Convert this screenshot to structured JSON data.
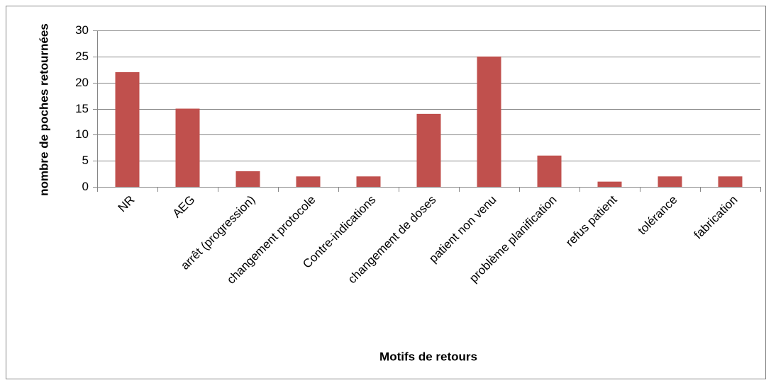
{
  "chart_data": {
    "type": "bar",
    "xlabel": "Motifs de retours",
    "ylabel": "nombre de poches retournées",
    "categories": [
      "NR",
      "AEG",
      "arrêt (progression)",
      "changement protocole",
      "Contre-indications",
      "changement de doses",
      "patient non venu",
      "problème planification",
      "refus patient",
      "tolérance",
      "fabrication"
    ],
    "values": [
      22,
      15,
      3,
      2,
      2,
      14,
      25,
      6,
      1,
      2,
      2
    ],
    "color": "#c0504d",
    "ylim": [
      0,
      30
    ],
    "yticks": [
      0,
      5,
      10,
      15,
      20,
      25,
      30
    ],
    "grid": true
  }
}
